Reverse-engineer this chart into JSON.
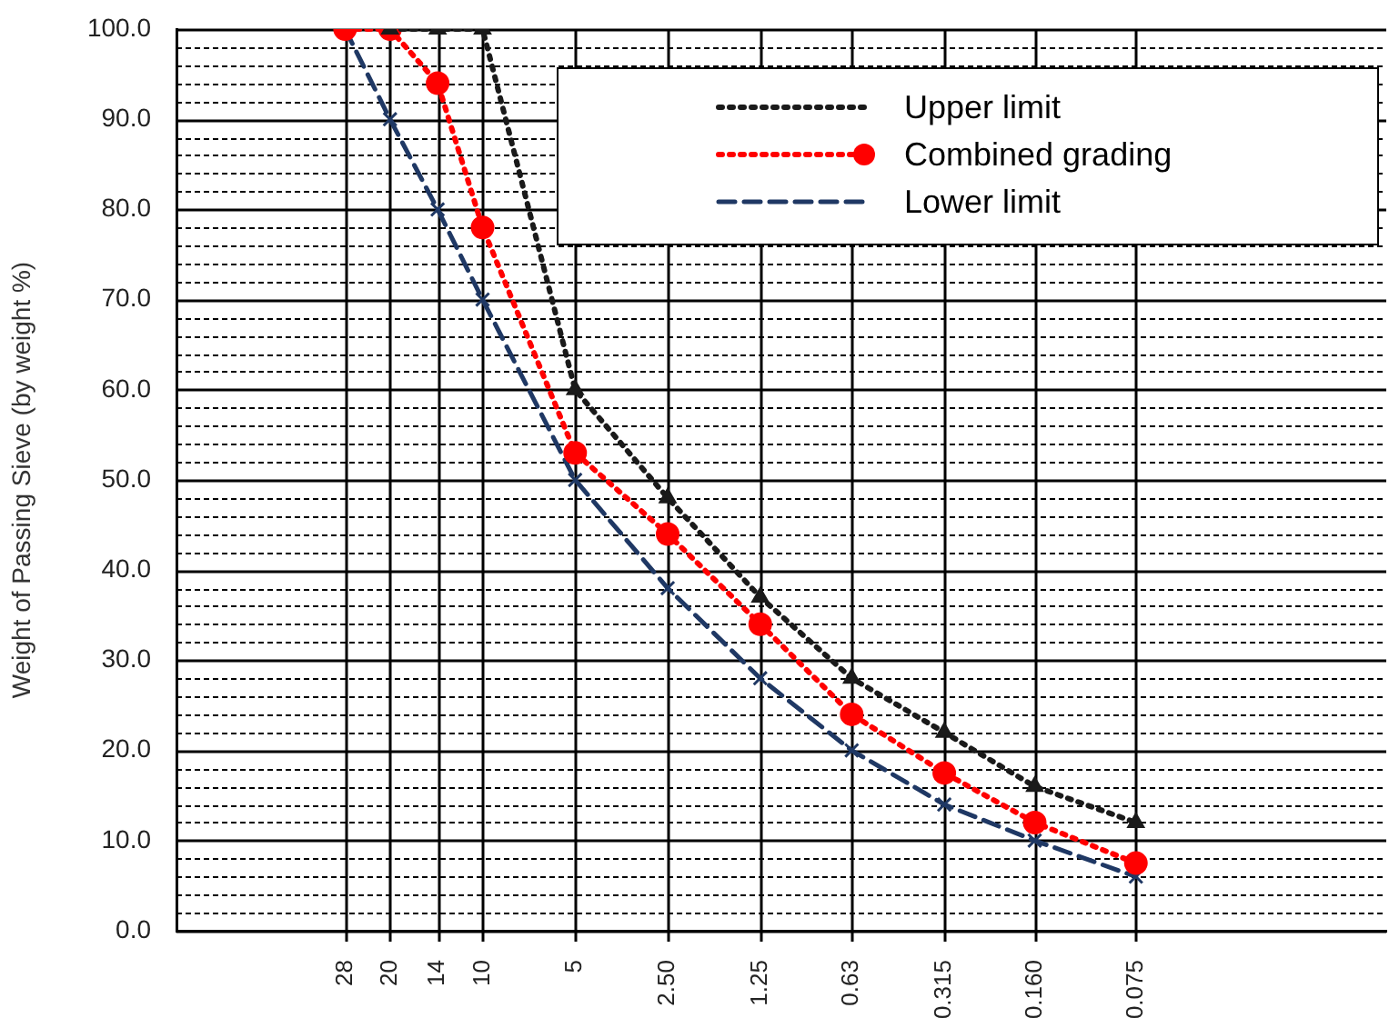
{
  "chart_data": {
    "type": "line",
    "ylabel": "Weight of Passing Sieve (by weight %)",
    "x": [
      28,
      20,
      14,
      10,
      5,
      2.5,
      1.25,
      0.63,
      0.315,
      0.16,
      0.075
    ],
    "xlim": [
      99,
      0.0115
    ],
    "xticks": [
      28,
      20,
      14,
      10,
      5,
      {
        "value": 2.5,
        "label": "2.50"
      },
      1.25,
      0.63,
      0.315,
      {
        "value": 0.16,
        "label": "0.160"
      },
      0.075
    ],
    "log": "x",
    "ylim": [
      0,
      100
    ],
    "yticks": [
      {
        "value": 0,
        "label": "0.0"
      },
      {
        "value": 2,
        "label": null
      },
      {
        "value": 4,
        "label": null
      },
      {
        "value": 6,
        "label": null
      },
      {
        "value": 8,
        "label": null
      },
      {
        "value": 10,
        "label": "10.0"
      },
      {
        "value": 12,
        "label": null
      },
      {
        "value": 14,
        "label": null
      },
      {
        "value": 16,
        "label": null
      },
      {
        "value": 18,
        "label": null
      },
      {
        "value": 20,
        "label": "20.0"
      },
      {
        "value": 22,
        "label": null
      },
      {
        "value": 24,
        "label": null
      },
      {
        "value": 26,
        "label": null
      },
      {
        "value": 28,
        "label": null
      },
      {
        "value": 30,
        "label": "30.0"
      },
      {
        "value": 32,
        "label": null
      },
      {
        "value": 34,
        "label": null
      },
      {
        "value": 36,
        "label": null
      },
      {
        "value": 38,
        "label": null
      },
      {
        "value": 40,
        "label": "40.0"
      },
      {
        "value": 42,
        "label": null
      },
      {
        "value": 44,
        "label": null
      },
      {
        "value": 46,
        "label": null
      },
      {
        "value": 48,
        "label": null
      },
      {
        "value": 50,
        "label": "50.0"
      },
      {
        "value": 52,
        "label": null
      },
      {
        "value": 54,
        "label": null
      },
      {
        "value": 56,
        "label": null
      },
      {
        "value": 58,
        "label": null
      },
      {
        "value": 60,
        "label": "60.0"
      },
      {
        "value": 62,
        "label": null
      },
      {
        "value": 64,
        "label": null
      },
      {
        "value": 66,
        "label": null
      },
      {
        "value": 68,
        "label": null
      },
      {
        "value": 70,
        "label": "70.0"
      },
      {
        "value": 72,
        "label": null
      },
      {
        "value": 74,
        "label": null
      },
      {
        "value": 76,
        "label": null
      },
      {
        "value": 78,
        "label": null
      },
      {
        "value": 80,
        "label": "80.0"
      },
      {
        "value": 82,
        "label": null
      },
      {
        "value": 84,
        "label": null
      },
      {
        "value": 86,
        "label": null
      },
      {
        "value": 88,
        "label": null
      },
      {
        "value": 90,
        "label": "90.0"
      },
      {
        "value": 92,
        "label": null
      },
      {
        "value": 94,
        "label": null
      },
      {
        "value": 96,
        "label": null
      },
      {
        "value": 98,
        "label": null
      },
      {
        "value": 100,
        "label": "100.0"
      }
    ],
    "grid": true,
    "legend": "top right",
    "series": [
      {
        "name": "Upper limit",
        "color": "#1a1a1a",
        "line_style": "dotted",
        "marker": "triangle",
        "values": [
          null,
          100,
          100,
          100,
          60,
          48,
          37,
          28,
          22,
          16,
          12
        ]
      },
      {
        "name": "Combined grading",
        "color": "#ff0000",
        "line_style": "dotted",
        "marker": "circle",
        "values": [
          100,
          100,
          94,
          78,
          53,
          44,
          34,
          24,
          17.5,
          12,
          7.5
        ]
      },
      {
        "name": "Lower limit",
        "color": "#1f3864",
        "line_style": "dashed",
        "marker": "cross",
        "values": [
          100,
          90,
          80,
          70,
          50,
          38,
          28,
          20,
          14,
          10,
          6
        ]
      }
    ]
  }
}
